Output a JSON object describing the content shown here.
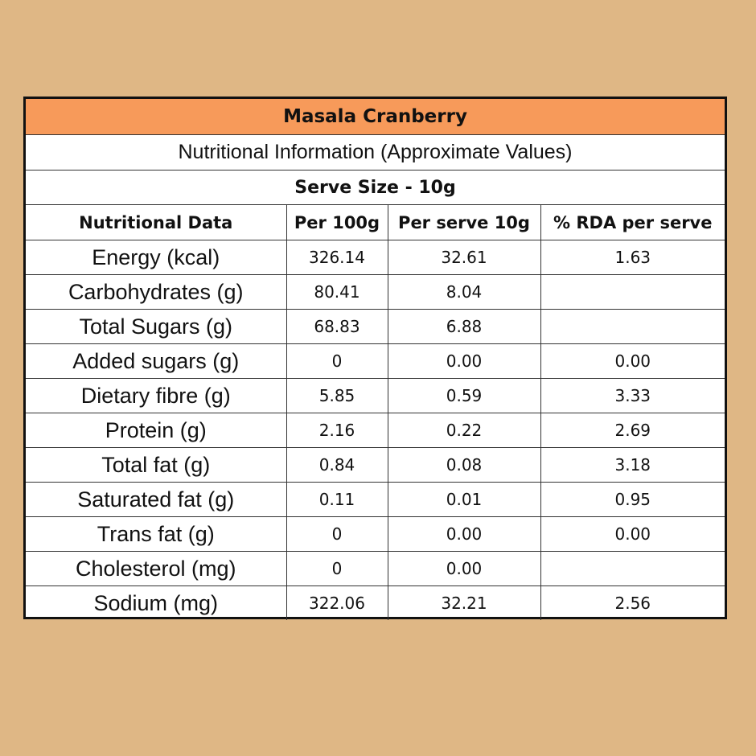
{
  "title": "Masala Cranberry",
  "subtitle": "Nutritional Information (Approximate Values)",
  "serve_size": "Serve Size - 10g",
  "headers": [
    "Nutritional Data",
    "Per 100g",
    "Per serve 10g",
    "% RDA per serve"
  ],
  "rows": [
    {
      "name": "Energy (kcal)",
      "per100": "326.14",
      "perserve": "32.61",
      "rda": "1.63"
    },
    {
      "name": "Carbohydrates (g)",
      "per100": "80.41",
      "perserve": "8.04",
      "rda": ""
    },
    {
      "name": "Total Sugars (g)",
      "per100": "68.83",
      "perserve": "6.88",
      "rda": ""
    },
    {
      "name": "Added sugars (g)",
      "per100": "0",
      "perserve": "0.00",
      "rda": "0.00"
    },
    {
      "name": "Dietary fibre (g)",
      "per100": "5.85",
      "perserve": "0.59",
      "rda": "3.33"
    },
    {
      "name": "Protein (g)",
      "per100": "2.16",
      "perserve": "0.22",
      "rda": "2.69"
    },
    {
      "name": "Total fat (g)",
      "per100": "0.84",
      "perserve": "0.08",
      "rda": "3.18"
    },
    {
      "name": "Saturated fat (g)",
      "per100": "0.11",
      "perserve": "0.01",
      "rda": "0.95"
    },
    {
      "name": "Trans fat (g)",
      "per100": "0",
      "perserve": "0.00",
      "rda": "0.00"
    },
    {
      "name": "Cholesterol (mg)",
      "per100": "0",
      "perserve": "0.00",
      "rda": ""
    },
    {
      "name": "Sodium (mg)",
      "per100": "322.06",
      "perserve": "32.21",
      "rda": "2.56"
    }
  ],
  "colors": {
    "background": "#dfb785",
    "title_band": "#f79a5a",
    "border": "#111111"
  }
}
